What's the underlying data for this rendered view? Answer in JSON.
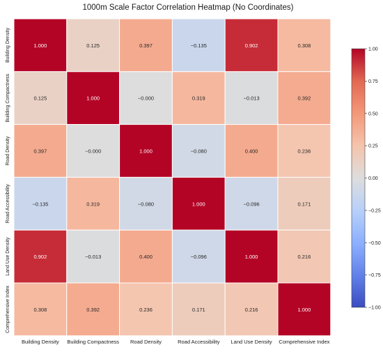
{
  "chart_data": {
    "type": "heatmap",
    "title": "1000m Scale Factor Correlation Heatmap (No Coordinates)",
    "row_labels": [
      "Building Density",
      "Building Compactness",
      "Road Density",
      "Road Accessibility",
      "Land Use Density",
      "Comprehensive Index"
    ],
    "col_labels": [
      "Building Density",
      "Building Compactness",
      "Road Density",
      "Road Accessibility",
      "Land Use Density",
      "Comprehensive Index"
    ],
    "values": [
      [
        1.0,
        0.125,
        0.397,
        -0.135,
        0.902,
        0.308
      ],
      [
        0.125,
        1.0,
        -0.0,
        0.319,
        -0.013,
        0.392
      ],
      [
        0.397,
        -0.0,
        1.0,
        -0.08,
        0.4,
        0.236
      ],
      [
        -0.135,
        0.319,
        -0.08,
        1.0,
        -0.096,
        0.171
      ],
      [
        0.902,
        -0.013,
        0.4,
        -0.096,
        1.0,
        0.216
      ],
      [
        0.308,
        0.392,
        0.236,
        0.171,
        0.216,
        1.0
      ]
    ],
    "cell_text": [
      [
        "1.000",
        "0.125",
        "0.397",
        "−0.135",
        "0.902",
        "0.308"
      ],
      [
        "0.125",
        "1.000",
        "−0.000",
        "0.319",
        "−0.013",
        "0.392"
      ],
      [
        "0.397",
        "−0.000",
        "1.000",
        "−0.080",
        "0.400",
        "0.236"
      ],
      [
        "−0.135",
        "0.319",
        "−0.080",
        "1.000",
        "−0.096",
        "0.171"
      ],
      [
        "0.902",
        "−0.013",
        "0.400",
        "−0.096",
        "1.000",
        "0.216"
      ],
      [
        "0.308",
        "0.392",
        "0.236",
        "0.171",
        "0.216",
        "1.000"
      ]
    ],
    "colormap": "coolwarm",
    "vmin": -1.0,
    "vmax": 1.0,
    "colorbar_ticks": [
      1.0,
      0.75,
      0.5,
      0.25,
      0.0,
      -0.25,
      -0.5,
      -0.75,
      -1.0
    ],
    "colorbar_tick_labels": [
      "1.00",
      "0.75",
      "0.50",
      "0.25",
      "0.00",
      "−0.25",
      "−0.50",
      "−0.75",
      "−1.00"
    ],
    "colors": {
      "low": "#3b4cc0",
      "mid": "#dddddd",
      "high": "#b40426"
    }
  }
}
